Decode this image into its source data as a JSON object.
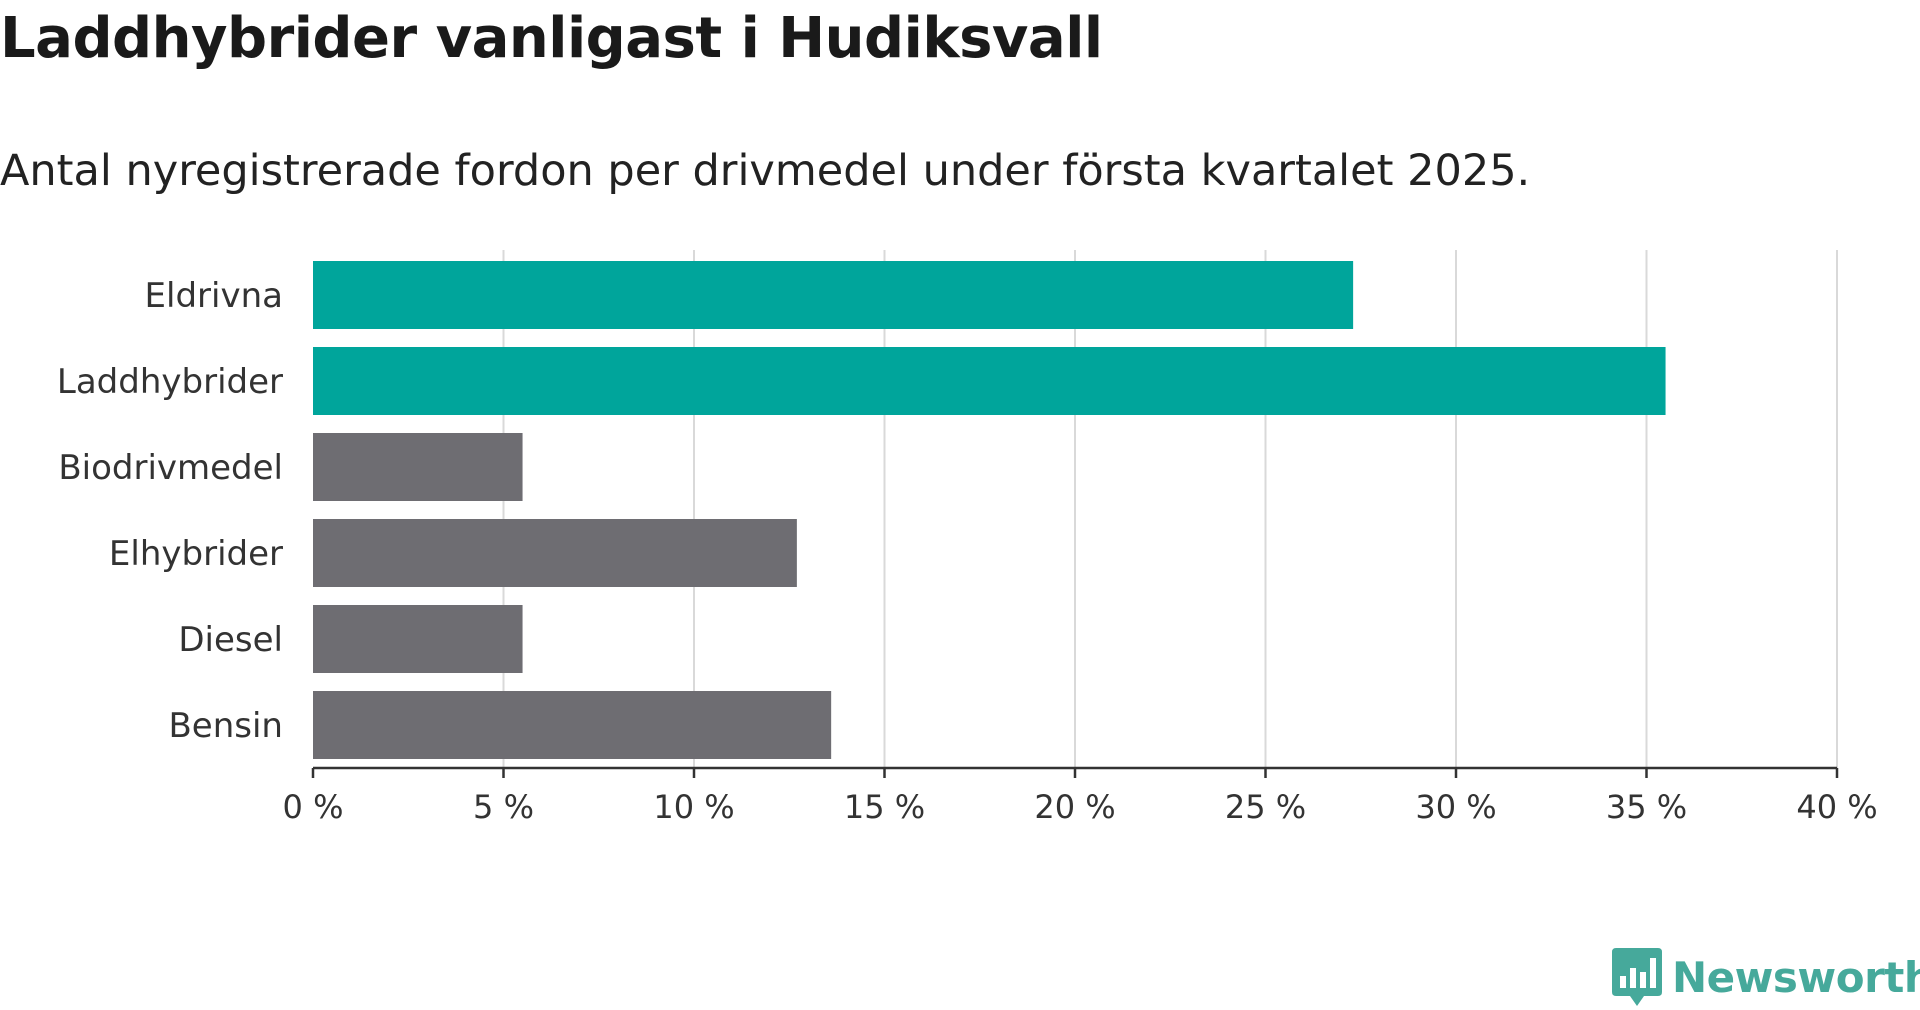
{
  "title": "Laddhybrider vanligast i Hudiksvall",
  "subtitle": "Antal nyregistrerade fordon per drivmedel under första kvartalet 2025.",
  "brand": {
    "name": "Newsworthy",
    "color": "#46a99b",
    "icon": "chart-speech-bubble-icon"
  },
  "colors": {
    "highlight": "#00a59b",
    "default": "#6e6d72",
    "grid": "#d9d9d9",
    "axis": "#333333"
  },
  "chart_data": {
    "type": "bar",
    "orientation": "horizontal",
    "categories": [
      "Eldrivna",
      "Laddhybrider",
      "Biodrivmedel",
      "Elhybrider",
      "Diesel",
      "Bensin"
    ],
    "values": [
      27.3,
      35.5,
      5.5,
      12.7,
      5.5,
      13.6
    ],
    "highlighted": [
      true,
      true,
      false,
      false,
      false,
      false
    ],
    "unit": "%",
    "xlim": [
      0,
      40
    ],
    "xticks": [
      0,
      5,
      10,
      15,
      20,
      25,
      30,
      35,
      40
    ],
    "xtick_labels": [
      "0 %",
      "5 %",
      "10 %",
      "15 %",
      "20 %",
      "25 %",
      "30 %",
      "35 %",
      "40 %"
    ],
    "grid": true,
    "legend": "none"
  }
}
